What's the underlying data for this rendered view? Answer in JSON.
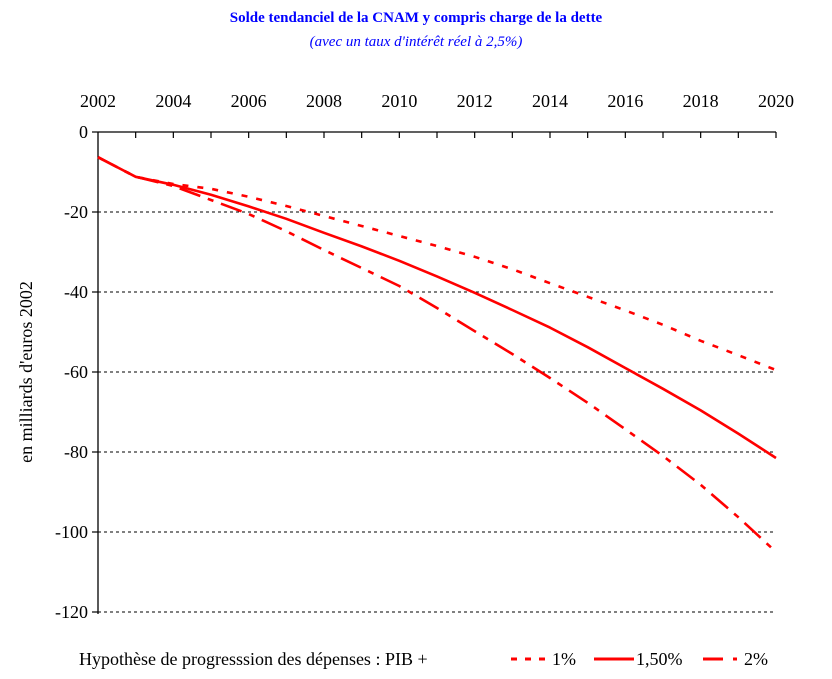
{
  "chart_data": {
    "type": "line",
    "title": "Solde tendanciel de la CNAM y compris charge de la dette",
    "subtitle": "(avec un taux d'intérêt réel à 2,5%)",
    "title_color": "#0000ff",
    "xlabel": "",
    "ylabel": "en milliards d'euros 2002",
    "x": [
      2002,
      2003,
      2004,
      2005,
      2006,
      2007,
      2008,
      2009,
      2010,
      2011,
      2012,
      2013,
      2014,
      2015,
      2016,
      2017,
      2018,
      2019,
      2020
    ],
    "xlim": [
      2002,
      2020
    ],
    "ylim": [
      -120,
      0
    ],
    "x_tick_labels": [
      "2002",
      "2004",
      "2006",
      "2008",
      "2010",
      "2012",
      "2014",
      "2016",
      "2018",
      "2020"
    ],
    "x_tick_values": [
      2002,
      2004,
      2006,
      2008,
      2010,
      2012,
      2014,
      2016,
      2018,
      2020
    ],
    "x_axis_position": "top",
    "y_tick_values": [
      0,
      -20,
      -40,
      -60,
      -80,
      -100,
      -120
    ],
    "y_tick_labels": [
      "0",
      "-20",
      "-40",
      "-60",
      "-80",
      "-100",
      "-120"
    ],
    "grid": "horizontal dashed",
    "legend_position": "bottom",
    "legend_prefix": "Hypothèse de progresssion des dépenses : PIB +",
    "series": [
      {
        "name": "1%",
        "style": "dotted",
        "color": "#ff0000",
        "values": [
          -6.3,
          -11.2,
          -13.0,
          -14.2,
          -16.2,
          -18.5,
          -21.0,
          -23.5,
          -26.0,
          -28.5,
          -31.2,
          -34.3,
          -37.8,
          -41.2,
          -44.6,
          -48.2,
          -52.2,
          -55.8,
          -59.5
        ]
      },
      {
        "name": "1,50%",
        "style": "solid",
        "color": "#ff0000",
        "values": [
          -6.3,
          -11.2,
          -13.2,
          -15.7,
          -18.6,
          -21.7,
          -25.2,
          -28.6,
          -32.2,
          -36.1,
          -40.2,
          -44.5,
          -48.9,
          -53.8,
          -59.0,
          -64.2,
          -69.6,
          -75.4,
          -81.5
        ]
      },
      {
        "name": "2%",
        "style": "dash-dot",
        "color": "#ff0000",
        "values": [
          -6.3,
          -11.2,
          -13.5,
          -17.0,
          -20.5,
          -24.8,
          -29.5,
          -34.0,
          -38.5,
          -44.0,
          -49.8,
          -55.5,
          -61.5,
          -67.7,
          -74.3,
          -81.0,
          -88.2,
          -96.3,
          -105.0
        ]
      }
    ]
  }
}
